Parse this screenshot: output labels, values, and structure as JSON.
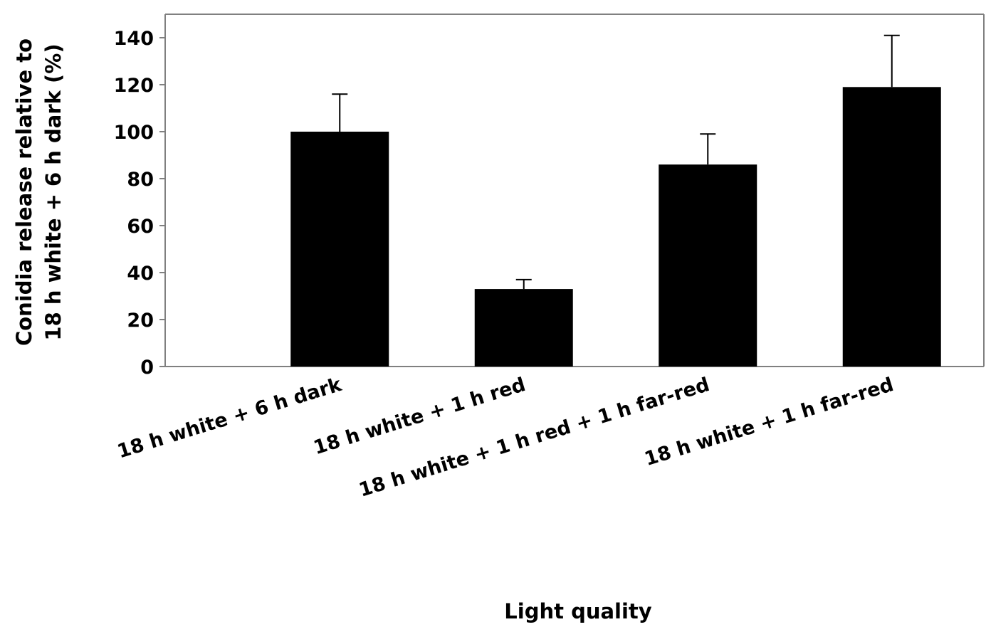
{
  "chart_data": {
    "type": "bar",
    "title": "",
    "xlabel": "Light quality",
    "ylabel_lines": [
      "Conidia release relative to",
      "18 h white + 6 h dark (%)"
    ],
    "categories": [
      "18 h white + 6 h dark",
      "18 h white + 1 h red",
      "18 h white + 1 h red + 1 h far-red",
      "18 h white + 1 h far-red"
    ],
    "values": [
      100,
      33,
      86,
      119
    ],
    "errors": [
      16,
      4,
      13,
      22
    ],
    "ylim": [
      0,
      150
    ],
    "yticks": [
      0,
      20,
      40,
      60,
      80,
      100,
      120,
      140
    ],
    "grid": false,
    "legend": "none",
    "colors": {
      "bar": "#000000",
      "axis": "#808080",
      "error": "#000000"
    }
  }
}
